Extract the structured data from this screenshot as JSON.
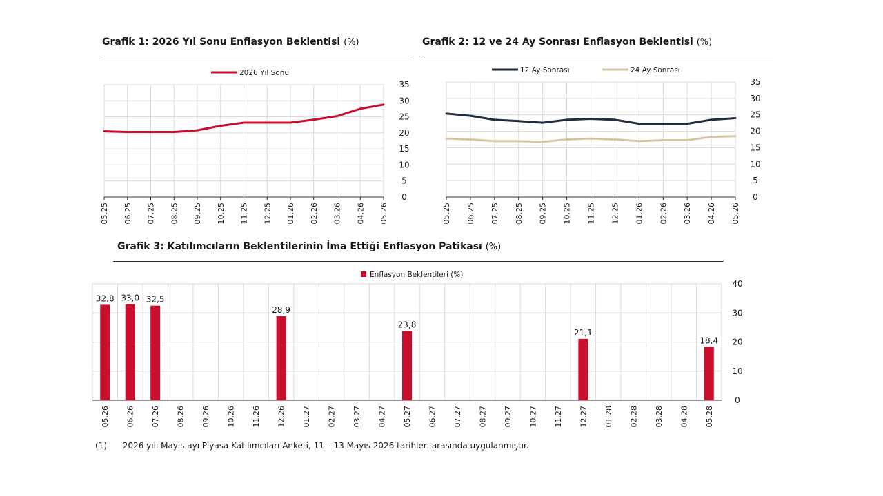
{
  "chart_data": [
    {
      "type": "line",
      "title": "Grafik 1: 2026 Yıl Sonu Enflasyon Beklentisi",
      "title_unit": "(%)",
      "x": [
        "05.25",
        "06.25",
        "07.25",
        "08.25",
        "09.25",
        "10.25",
        "11.25",
        "12.25",
        "01.26",
        "02.26",
        "03.26",
        "04.26",
        "05.26"
      ],
      "series": [
        {
          "name": "2026 Yıl Sonu",
          "color": "#c8102e",
          "values": [
            20.5,
            20.3,
            20.3,
            20.3,
            20.8,
            22.2,
            23.2,
            23.2,
            23.2,
            24.1,
            25.2,
            27.5,
            28.8
          ]
        }
      ],
      "yticks": [
        "0",
        "5",
        "10",
        "15",
        "20",
        "25",
        "30",
        "35"
      ],
      "ylim": [
        0,
        35
      ],
      "grid": true,
      "legend": "top-center"
    },
    {
      "type": "line",
      "title": "Grafik 2: 12 ve 24 Ay Sonrası Enflasyon Beklentisi",
      "title_unit": "(%)",
      "x": [
        "05.25",
        "06.25",
        "07.25",
        "08.25",
        "09.25",
        "10.25",
        "11.25",
        "12.25",
        "01.26",
        "02.26",
        "03.26",
        "04.26",
        "05.26"
      ],
      "series": [
        {
          "name": "12 Ay Sonrası",
          "color": "#1f2d3d",
          "values": [
            25.4,
            24.7,
            23.5,
            23.1,
            22.6,
            23.5,
            23.8,
            23.5,
            22.3,
            22.3,
            22.3,
            23.5,
            24.0
          ]
        },
        {
          "name": "24 Ay Sonrası",
          "color": "#d9c3a5",
          "values": [
            17.8,
            17.5,
            17.0,
            17.0,
            16.8,
            17.5,
            17.8,
            17.5,
            17.0,
            17.3,
            17.3,
            18.3,
            18.5
          ]
        }
      ],
      "yticks": [
        "0",
        "5",
        "10",
        "15",
        "20",
        "25",
        "30",
        "35"
      ],
      "ylim": [
        0,
        35
      ],
      "grid": true,
      "legend": "top-center"
    },
    {
      "type": "bar",
      "title": "Grafik 3: Katılımcıların Beklentilerinin İma Ettiği Enflasyon Patikası",
      "title_unit": "(%)",
      "categories": [
        "05.26",
        "06.26",
        "07.26",
        "08.26",
        "09.26",
        "10.26",
        "11.26",
        "12.26",
        "01.27",
        "02.27",
        "03.27",
        "04.27",
        "05.27",
        "06.27",
        "07.27",
        "08.27",
        "09.27",
        "10.27",
        "11.27",
        "12.27",
        "01.28",
        "02.28",
        "03.28",
        "04.28",
        "05.28"
      ],
      "series": [
        {
          "name": "Enflasyon Beklentileri (%)",
          "color": "#c8102e",
          "values": [
            32.8,
            33.0,
            32.5,
            null,
            null,
            null,
            null,
            28.9,
            null,
            null,
            null,
            null,
            23.8,
            null,
            null,
            null,
            null,
            null,
            null,
            21.1,
            null,
            null,
            null,
            null,
            18.4
          ],
          "labels": [
            "32,8",
            "33,0",
            "32,5",
            "",
            "",
            "",
            "",
            "28,9",
            "",
            "",
            "",
            "",
            "23,8",
            "",
            "",
            "",
            "",
            "",
            "",
            "21,1",
            "",
            "",
            "",
            "",
            "18,4"
          ]
        }
      ],
      "yticks": [
        "0",
        "10",
        "20",
        "30",
        "40"
      ],
      "ylim": [
        0,
        40
      ],
      "grid": true,
      "legend": "top-center"
    }
  ],
  "footnote": {
    "number": "(1)",
    "text": "2026 yılı Mayıs ayı Piyasa Katılımcıları Anketi, 11 – 13 Mayıs 2026 tarihleri arasında uygulanmıştır."
  }
}
